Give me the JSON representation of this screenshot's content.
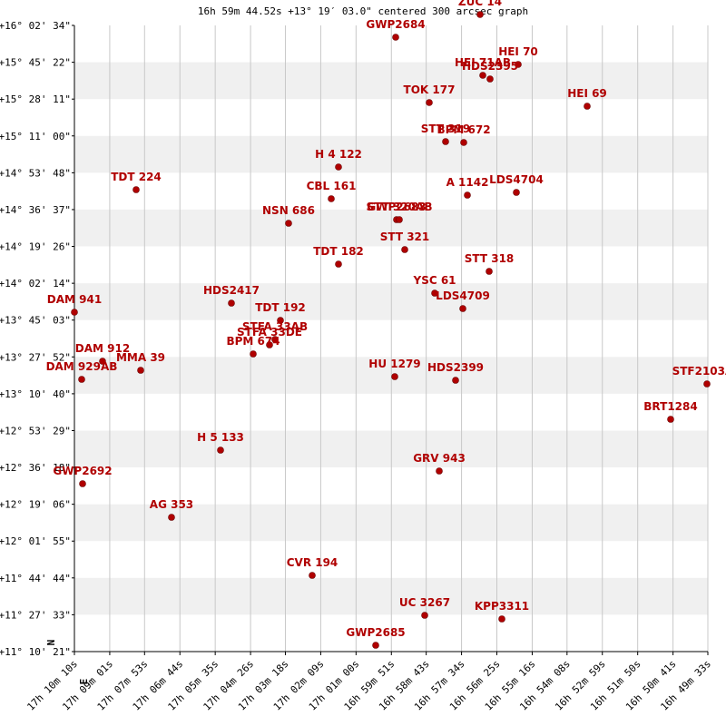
{
  "chart_data": {
    "type": "scatter",
    "title": "16h 59m 44.52s +13° 19′ 03.0\" centered 300 arcsec graph",
    "compass": [
      "N",
      "E"
    ],
    "point_labels": [
      "GWP2684",
      "ZUC  14",
      "HEI  70",
      "HEI  71AB",
      "HDS2395",
      "TOK 177",
      "HEI  69",
      "STT 319",
      "BPM 672",
      "H 4 122",
      "TDT 224",
      "CBL 161",
      "A  1142",
      "LDS4704",
      "NSN 686",
      "GWP2683",
      "STT 320AB",
      "STT 321",
      "TDT 182",
      "STT 318",
      "YSC  61",
      "LDS4709",
      "DAM 941",
      "HDS2417",
      "TDT 192",
      "STFA 33AB",
      "STFA 33DE",
      "BPM 674",
      "DAM 912",
      "MMA  39",
      "DAM 929AB",
      "HU 1279",
      "HDS2399",
      "STF2103AB",
      "BRT1284",
      "H 5 133",
      "GRV 943",
      "GWP2692",
      "AG  353",
      "CVR 194",
      "UC 3267",
      "KPP3311",
      "GWP2685"
    ],
    "x": [
      16.99517,
      16.94939,
      16.92872,
      16.94791,
      16.94398,
      16.97696,
      16.8913,
      16.9681,
      16.95825,
      17.02619,
      17.13596,
      17.03012,
      16.95628,
      16.9297,
      17.05326,
      16.99468,
      16.9932,
      16.99025,
      17.02619,
      16.94446,
      16.974,
      16.95874,
      17.16944,
      17.08428,
      17.05769,
      17.06065,
      17.0636,
      17.07246,
      17.15418,
      17.1335,
      17.1655,
      16.99567,
      16.96268,
      16.82632,
      16.84601,
      17.09018,
      16.97154,
      17.16501,
      17.11677,
      17.04046,
      16.97942,
      16.93757,
      17.006
    ],
    "values": [
      15.95102,
      16.12748,
      15.73927,
      15.65457,
      15.62633,
      15.44282,
      15.41458,
      15.1393,
      15.13225,
      14.94167,
      14.76521,
      14.69463,
      14.72286,
      14.74403,
      14.50405,
      14.53228,
      14.53228,
      14.29935,
      14.18642,
      14.12995,
      13.96055,
      13.84056,
      13.81233,
      13.88291,
      13.7488,
      13.60057,
      13.55822,
      13.48764,
      13.43117,
      13.36059,
      13.29,
      13.31118,
      13.28295,
      13.25471,
      12.97943,
      12.73945,
      12.57711,
      12.47829,
      12.21713,
      11.76539,
      11.45482,
      11.42659,
      11.2219
    ],
    "color": "#b00000",
    "xlim": [
      17.16944,
      16.82583
    ],
    "ylim": [
      11.1725,
      16.04278
    ],
    "xticks": [
      {
        "value": 17.16944,
        "label": "17h 10m 10s"
      },
      {
        "value": 17.15028,
        "label": "17h 09m 01s"
      },
      {
        "value": 17.13139,
        "label": "17h 07m 53s"
      },
      {
        "value": 17.11222,
        "label": "17h 06m 44s"
      },
      {
        "value": 17.09306,
        "label": "17h 05m 35s"
      },
      {
        "value": 17.07389,
        "label": "17h 04m 26s"
      },
      {
        "value": 17.055,
        "label": "17h 03m 18s"
      },
      {
        "value": 17.03583,
        "label": "17h 02m 09s"
      },
      {
        "value": 17.01667,
        "label": "17h 01m 00s"
      },
      {
        "value": 16.9975,
        "label": "16h 59m 51s"
      },
      {
        "value": 16.97861,
        "label": "16h 58m 43s"
      },
      {
        "value": 16.95944,
        "label": "16h 57m 34s"
      },
      {
        "value": 16.94028,
        "label": "16h 56m 25s"
      },
      {
        "value": 16.92111,
        "label": "16h 55m 16s"
      },
      {
        "value": 16.90222,
        "label": "16h 54m 08s"
      },
      {
        "value": 16.88306,
        "label": "16h 52m 59s"
      },
      {
        "value": 16.86389,
        "label": "16h 51m 50s"
      },
      {
        "value": 16.84472,
        "label": "16h 50m 41s"
      },
      {
        "value": 16.82583,
        "label": "16h 49m 33s"
      }
    ],
    "yticks": [
      {
        "value": 16.04278,
        "label": "+16° 02' 34\""
      },
      {
        "value": 15.75611,
        "label": "+15° 45' 22\""
      },
      {
        "value": 15.46972,
        "label": "+15° 28' 11\""
      },
      {
        "value": 15.18333,
        "label": "+15° 11' 00\""
      },
      {
        "value": 14.89667,
        "label": "+14° 53' 48\""
      },
      {
        "value": 14.61028,
        "label": "+14° 36' 37\""
      },
      {
        "value": 14.32389,
        "label": "+14° 19' 26\""
      },
      {
        "value": 14.03722,
        "label": "+14° 02' 14\""
      },
      {
        "value": 13.75083,
        "label": "+13° 45' 03\""
      },
      {
        "value": 13.46444,
        "label": "+13° 27' 52\""
      },
      {
        "value": 13.17778,
        "label": "+13° 10' 40\""
      },
      {
        "value": 12.89139,
        "label": "+12° 53' 29\""
      },
      {
        "value": 12.605,
        "label": "+12° 36' 18\""
      },
      {
        "value": 12.31833,
        "label": "+12° 19' 06\""
      },
      {
        "value": 12.03194,
        "label": "+12° 01' 55\""
      },
      {
        "value": 11.74556,
        "label": "+11° 44' 44\""
      },
      {
        "value": 11.45917,
        "label": "+11° 27' 33\""
      },
      {
        "value": 11.1725,
        "label": "+11° 10' 21\""
      }
    ],
    "grid": true
  }
}
